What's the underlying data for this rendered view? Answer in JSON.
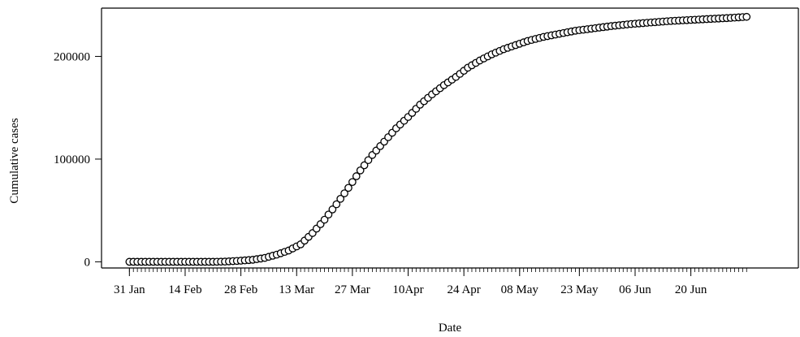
{
  "chart_data": {
    "type": "scatter",
    "title": "",
    "xlabel": "Date",
    "ylabel": "Cumulative cases",
    "x_tick_labels": [
      "31 Jan",
      "14 Feb",
      "28 Feb",
      "13 Mar",
      "27 Mar",
      "10Apr",
      "24 Apr",
      "08 May",
      "23 May",
      "06 Jun",
      "20 Jun"
    ],
    "x_tick_dates": [
      "2020-01-31",
      "2020-02-14",
      "2020-02-28",
      "2020-03-13",
      "2020-03-27",
      "2020-04-10",
      "2020-04-24",
      "2020-05-08",
      "2020-05-23",
      "2020-06-06",
      "2020-06-20"
    ],
    "y_tick_labels": [
      "0",
      "100000",
      "200000"
    ],
    "y_tick_values": [
      0,
      100000,
      200000
    ],
    "xlim": [
      "2020-01-24",
      "2020-07-17"
    ],
    "ylim": [
      -6000,
      247000
    ],
    "grid": false,
    "marker": "open-circle",
    "x": [
      "2020-01-31",
      "2020-02-07",
      "2020-02-14",
      "2020-02-21",
      "2020-02-24",
      "2020-02-28",
      "2020-03-02",
      "2020-03-05",
      "2020-03-08",
      "2020-03-11",
      "2020-03-14",
      "2020-03-17",
      "2020-03-20",
      "2020-03-23",
      "2020-03-26",
      "2020-03-29",
      "2020-04-01",
      "2020-04-04",
      "2020-04-07",
      "2020-04-10",
      "2020-04-13",
      "2020-04-16",
      "2020-04-19",
      "2020-04-22",
      "2020-04-25",
      "2020-04-28",
      "2020-05-01",
      "2020-05-04",
      "2020-05-07",
      "2020-05-10",
      "2020-05-14",
      "2020-05-18",
      "2020-05-22",
      "2020-05-26",
      "2020-05-31",
      "2020-06-05",
      "2020-06-10",
      "2020-06-15",
      "2020-06-20",
      "2020-06-25",
      "2020-06-30",
      "2020-07-04"
    ],
    "y": [
      0,
      0,
      0,
      0,
      200,
      1100,
      2000,
      3800,
      7000,
      11000,
      17000,
      28000,
      41000,
      56000,
      72000,
      89000,
      104000,
      117000,
      130000,
      141000,
      153000,
      163000,
      172000,
      180000,
      189000,
      196000,
      202000,
      207000,
      211000,
      215000,
      219000,
      222000,
      225000,
      227000,
      229500,
      231500,
      233000,
      234500,
      235500,
      236500,
      237500,
      238500
    ]
  }
}
